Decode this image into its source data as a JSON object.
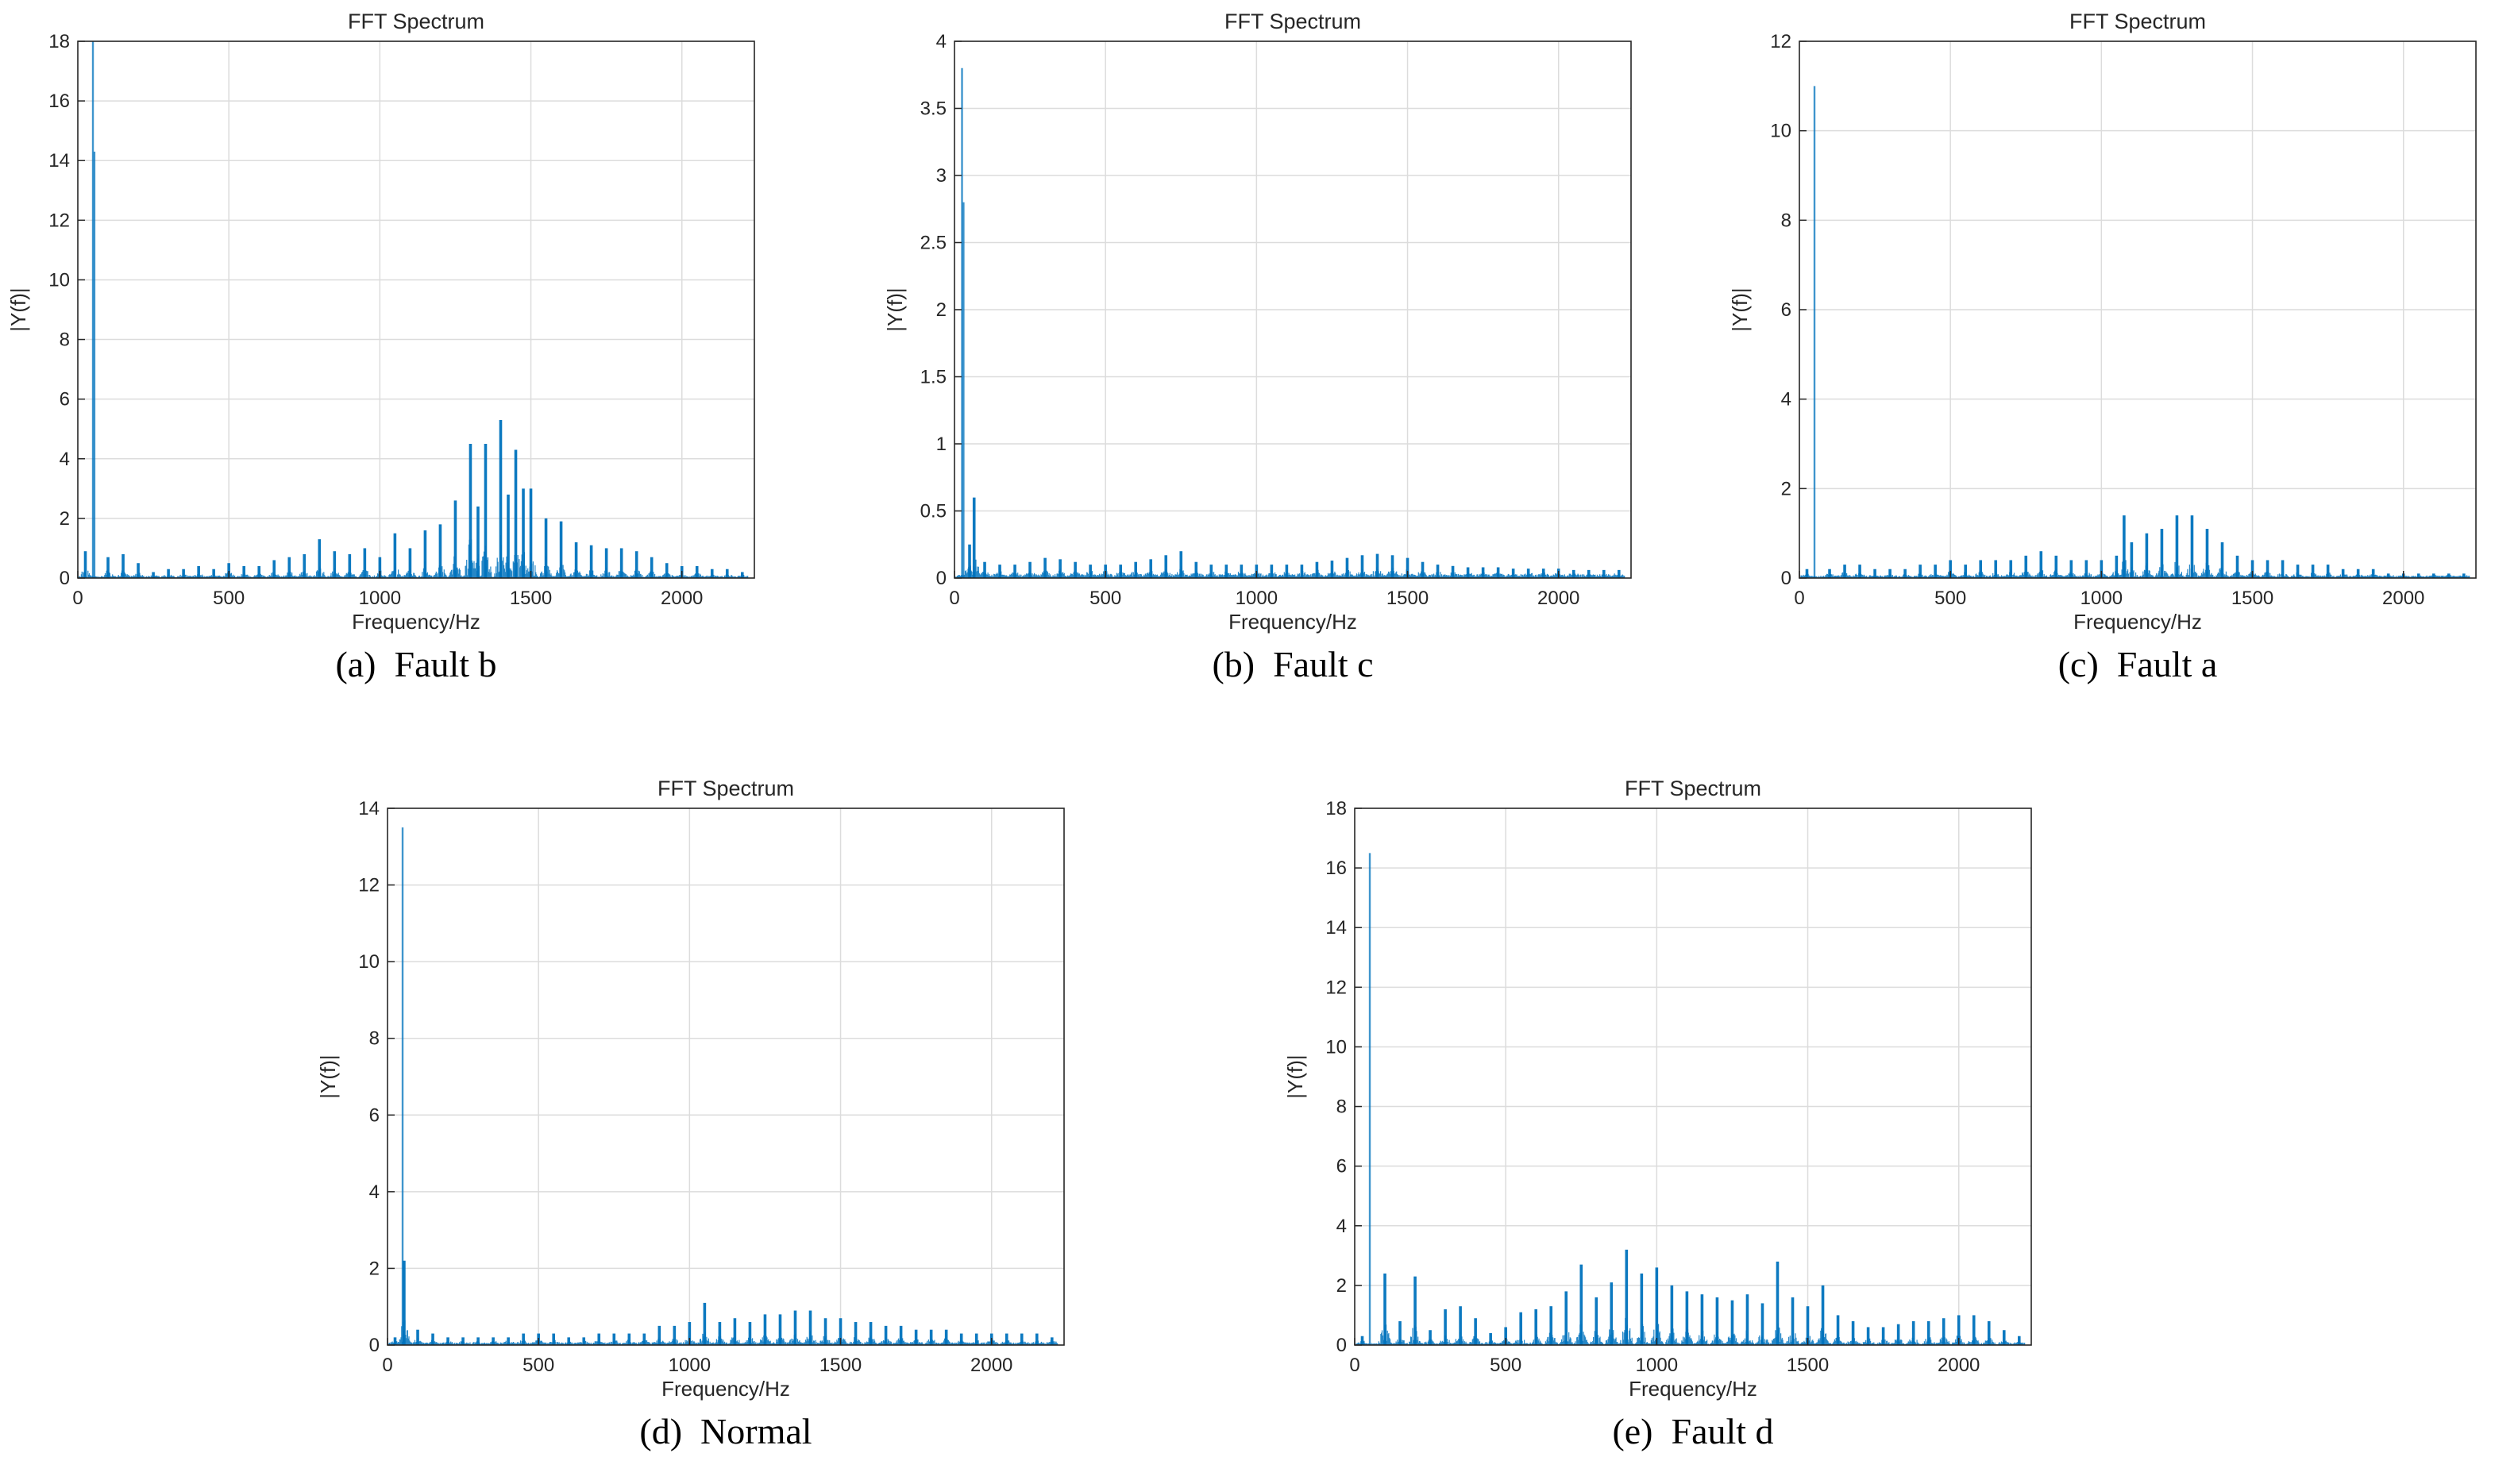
{
  "colors": {
    "series": "#0072bd",
    "grid": "#dcdcdc",
    "axis": "#262626"
  },
  "chart_data": [
    {
      "id": "a",
      "type": "bar",
      "title": "FFT Spectrum",
      "xlabel": "Frequency/Hz",
      "ylabel": "|Y(f)|",
      "caption": "(a)  Fault b",
      "xlim": [
        0,
        2240
      ],
      "ylim": [
        0,
        18
      ],
      "xticks": [
        0,
        500,
        1000,
        1500,
        2000
      ],
      "yticks": [
        0,
        2,
        4,
        6,
        8,
        10,
        12,
        14,
        16,
        18
      ],
      "grid": true,
      "noise_floor": 0.05,
      "series": [
        {
          "x": [
            25,
            50,
            55,
            100,
            150,
            200,
            250,
            300,
            350,
            400,
            450,
            500,
            550,
            600,
            650,
            700,
            750,
            800,
            850,
            900,
            950,
            1000,
            1050,
            1100,
            1150,
            1200,
            1250,
            1300,
            1325,
            1350,
            1400,
            1425,
            1450,
            1475,
            1500,
            1550,
            1600,
            1650,
            1700,
            1750,
            1800,
            1850,
            1900,
            1950,
            2000,
            2050,
            2100,
            2150,
            2200
          ],
          "y": [
            0.9,
            18,
            14.3,
            0.7,
            0.8,
            0.5,
            0.2,
            0.3,
            0.3,
            0.4,
            0.3,
            0.5,
            0.4,
            0.4,
            0.6,
            0.7,
            0.8,
            1.3,
            0.9,
            0.8,
            1.0,
            0.7,
            1.5,
            1.0,
            1.6,
            1.8,
            2.6,
            4.5,
            2.4,
            4.5,
            5.3,
            2.8,
            4.3,
            3.0,
            3.0,
            2.0,
            1.9,
            1.2,
            1.1,
            1.0,
            1.0,
            0.9,
            0.7,
            0.5,
            0.4,
            0.4,
            0.3,
            0.3,
            0.2
          ]
        }
      ]
    },
    {
      "id": "b",
      "type": "bar",
      "title": "FFT Spectrum",
      "xlabel": "Frequency/Hz",
      "ylabel": "|Y(f)|",
      "caption": "(b)  Fault c",
      "xlim": [
        0,
        2240
      ],
      "ylim": [
        0,
        4
      ],
      "xticks": [
        0,
        500,
        1000,
        1500,
        2000
      ],
      "yticks": [
        0,
        0.5,
        1,
        1.5,
        2,
        2.5,
        3,
        3.5,
        4
      ],
      "grid": true,
      "noise_floor": 0.02,
      "series": [
        {
          "x": [
            25,
            30,
            50,
            65,
            100,
            150,
            200,
            250,
            300,
            350,
            400,
            450,
            500,
            550,
            600,
            650,
            700,
            750,
            800,
            850,
            900,
            950,
            1000,
            1050,
            1100,
            1150,
            1200,
            1250,
            1300,
            1350,
            1400,
            1450,
            1500,
            1550,
            1600,
            1650,
            1700,
            1750,
            1800,
            1850,
            1900,
            1950,
            2000,
            2050,
            2100,
            2150,
            2200
          ],
          "y": [
            3.8,
            2.8,
            0.25,
            0.6,
            0.12,
            0.1,
            0.1,
            0.12,
            0.15,
            0.14,
            0.12,
            0.1,
            0.1,
            0.1,
            0.12,
            0.14,
            0.17,
            0.2,
            0.12,
            0.1,
            0.1,
            0.1,
            0.1,
            0.1,
            0.1,
            0.1,
            0.12,
            0.13,
            0.15,
            0.17,
            0.18,
            0.17,
            0.15,
            0.12,
            0.1,
            0.09,
            0.08,
            0.08,
            0.08,
            0.07,
            0.07,
            0.07,
            0.07,
            0.06,
            0.06,
            0.06,
            0.06
          ]
        }
      ]
    },
    {
      "id": "c",
      "type": "bar",
      "title": "FFT Spectrum",
      "xlabel": "Frequency/Hz",
      "ylabel": "|Y(f)|",
      "caption": "(c)  Fault a",
      "xlim": [
        0,
        2240
      ],
      "ylim": [
        0,
        12
      ],
      "xticks": [
        0,
        500,
        1000,
        1500,
        2000
      ],
      "yticks": [
        0,
        2,
        4,
        6,
        8,
        10,
        12
      ],
      "grid": true,
      "noise_floor": 0.04,
      "series": [
        {
          "x": [
            25,
            50,
            100,
            150,
            200,
            250,
            300,
            350,
            400,
            450,
            500,
            550,
            600,
            650,
            700,
            750,
            800,
            850,
            900,
            950,
            1000,
            1050,
            1075,
            1100,
            1150,
            1200,
            1250,
            1300,
            1350,
            1400,
            1450,
            1500,
            1550,
            1600,
            1650,
            1700,
            1750,
            1800,
            1850,
            1900,
            1950,
            2000,
            2050,
            2100,
            2150,
            2200
          ],
          "y": [
            0.2,
            11.0,
            0.2,
            0.3,
            0.3,
            0.2,
            0.2,
            0.2,
            0.3,
            0.3,
            0.4,
            0.3,
            0.4,
            0.4,
            0.4,
            0.5,
            0.6,
            0.5,
            0.4,
            0.4,
            0.4,
            0.5,
            1.4,
            0.8,
            1.0,
            1.1,
            1.4,
            1.4,
            1.1,
            0.8,
            0.5,
            0.4,
            0.4,
            0.4,
            0.3,
            0.3,
            0.3,
            0.2,
            0.2,
            0.2,
            0.1,
            0.1,
            0.1,
            0.1,
            0.1,
            0.1
          ]
        }
      ]
    },
    {
      "id": "d",
      "type": "bar",
      "title": "FFT Spectrum",
      "xlabel": "Frequency/Hz",
      "ylabel": "|Y(f)|",
      "caption": "(d)  Normal",
      "xlim": [
        0,
        2240
      ],
      "ylim": [
        0,
        14
      ],
      "xticks": [
        0,
        500,
        1000,
        1500,
        2000
      ],
      "yticks": [
        0,
        2,
        4,
        6,
        8,
        10,
        12,
        14
      ],
      "grid": true,
      "noise_floor": 0.05,
      "series": [
        {
          "x": [
            25,
            50,
            55,
            100,
            150,
            200,
            250,
            300,
            350,
            400,
            450,
            500,
            550,
            600,
            650,
            700,
            750,
            800,
            850,
            900,
            950,
            1000,
            1050,
            1100,
            1150,
            1200,
            1250,
            1300,
            1350,
            1400,
            1450,
            1500,
            1550,
            1600,
            1650,
            1700,
            1750,
            1800,
            1850,
            1900,
            1950,
            2000,
            2050,
            2100,
            2150,
            2200
          ],
          "y": [
            0.2,
            13.5,
            2.2,
            0.4,
            0.3,
            0.2,
            0.2,
            0.2,
            0.2,
            0.2,
            0.3,
            0.3,
            0.3,
            0.2,
            0.2,
            0.3,
            0.3,
            0.3,
            0.3,
            0.5,
            0.5,
            0.6,
            1.1,
            0.6,
            0.7,
            0.6,
            0.8,
            0.8,
            0.9,
            0.9,
            0.7,
            0.7,
            0.6,
            0.6,
            0.5,
            0.5,
            0.4,
            0.4,
            0.4,
            0.3,
            0.3,
            0.3,
            0.3,
            0.3,
            0.3,
            0.2
          ]
        }
      ]
    },
    {
      "id": "e",
      "type": "bar",
      "title": "FFT Spectrum",
      "xlabel": "Frequency/Hz",
      "ylabel": "|Y(f)|",
      "caption": "(e)  Fault d",
      "xlim": [
        0,
        2240
      ],
      "ylim": [
        0,
        18
      ],
      "xticks": [
        0,
        500,
        1000,
        1500,
        2000
      ],
      "yticks": [
        0,
        2,
        4,
        6,
        8,
        10,
        12,
        14,
        16,
        18
      ],
      "grid": true,
      "noise_floor": 0.05,
      "series": [
        {
          "x": [
            25,
            50,
            100,
            150,
            200,
            250,
            300,
            350,
            400,
            450,
            500,
            550,
            600,
            650,
            700,
            750,
            800,
            850,
            900,
            950,
            1000,
            1050,
            1100,
            1150,
            1200,
            1250,
            1300,
            1350,
            1400,
            1450,
            1500,
            1550,
            1600,
            1650,
            1700,
            1750,
            1800,
            1850,
            1900,
            1950,
            2000,
            2050,
            2100,
            2150,
            2200
          ],
          "y": [
            0.3,
            16.5,
            2.4,
            0.8,
            2.3,
            0.5,
            1.2,
            1.3,
            0.9,
            0.4,
            0.6,
            1.1,
            1.2,
            1.3,
            1.8,
            2.7,
            1.6,
            2.1,
            3.2,
            2.4,
            2.6,
            2.0,
            1.8,
            1.7,
            1.6,
            1.5,
            1.7,
            1.4,
            2.8,
            1.6,
            1.3,
            2.0,
            1.0,
            0.8,
            0.6,
            0.6,
            0.7,
            0.8,
            0.8,
            0.9,
            1.0,
            1.0,
            0.8,
            0.5,
            0.3
          ]
        }
      ]
    }
  ]
}
